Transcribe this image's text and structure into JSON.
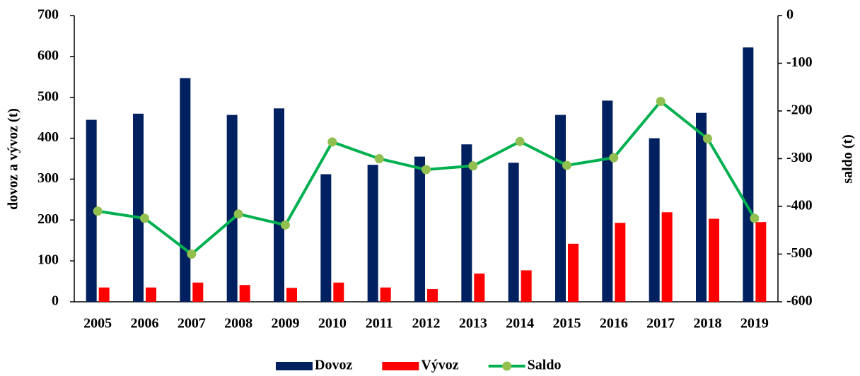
{
  "chart_data": {
    "type": "bar-line",
    "categories": [
      "2005",
      "2006",
      "2007",
      "2008",
      "2009",
      "2010",
      "2011",
      "2012",
      "2013",
      "2014",
      "2015",
      "2016",
      "2017",
      "2018",
      "2019"
    ],
    "ylabel": "dovoz a vývoz (t)",
    "y2label": "saldo (t)",
    "ylim": [
      0,
      700
    ],
    "yticks": [
      0,
      100,
      200,
      300,
      400,
      500,
      600,
      700
    ],
    "y2lim": [
      -600,
      0
    ],
    "y2ticks": [
      -600,
      -500,
      -400,
      -300,
      -200,
      -100,
      0
    ],
    "series": [
      {
        "name": "Dovoz",
        "color": "#002060",
        "type": "bar",
        "values": [
          445,
          460,
          547,
          457,
          473,
          312,
          335,
          355,
          385,
          340,
          457,
          492,
          400,
          462,
          622
        ]
      },
      {
        "name": "Vývoz",
        "color": "#ff0000",
        "type": "bar",
        "values": [
          35,
          35,
          47,
          41,
          34,
          47,
          35,
          31,
          69,
          77,
          142,
          193,
          219,
          203,
          195
        ]
      },
      {
        "name": "Saldo",
        "color": "#00b050",
        "marker_color": "#92c050",
        "type": "line",
        "axis": "y2",
        "values": [
          -410,
          -425,
          -500,
          -416,
          -439,
          -265,
          -300,
          -323,
          -315,
          -264,
          -314,
          -298,
          -180,
          -258,
          -425
        ]
      }
    ],
    "legend": "bottom"
  }
}
